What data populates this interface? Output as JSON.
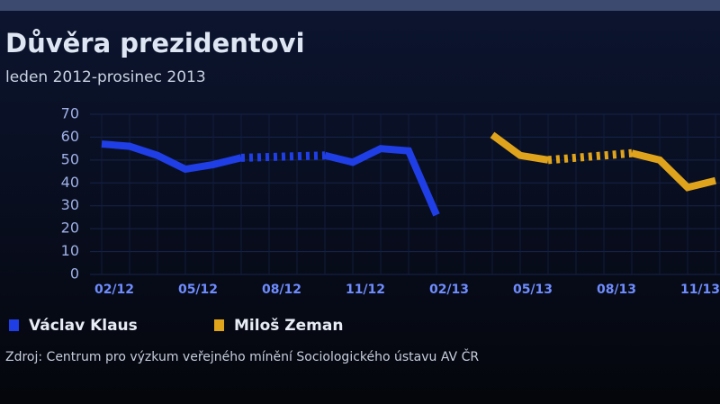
{
  "chart_data": {
    "type": "line",
    "title": "Důvěra prezidentovi",
    "subtitle": "leden 2012-prosinec 2013",
    "source": "Zdroj: Centrum pro výzkum veřejného mínění Sociologického ústavu AV ČR",
    "categories": [
      null,
      "02/12",
      null,
      null,
      "05/12",
      null,
      null,
      "08/12",
      null,
      null,
      "11/12",
      null,
      null,
      "02/13",
      null,
      null,
      "05/13",
      null,
      null,
      "08/13",
      null,
      null,
      "11/13",
      null
    ],
    "series": [
      {
        "name": "Václav Klaus",
        "color": "#1f3ee6",
        "values": [
          57,
          56,
          52,
          46,
          48,
          51,
          null,
          null,
          52,
          49,
          55,
          54,
          26,
          null,
          null,
          null,
          null,
          null,
          null,
          null,
          null,
          null,
          null,
          null
        ]
      },
      {
        "name": "Miloš Zeman",
        "color": "#e0a41c",
        "values": [
          null,
          null,
          null,
          null,
          null,
          null,
          null,
          null,
          null,
          null,
          null,
          null,
          null,
          null,
          61,
          52,
          50,
          null,
          null,
          53,
          50,
          38,
          41,
          null
        ]
      }
    ],
    "ylim": [
      0,
      70
    ],
    "yticks": [
      0,
      10,
      20,
      30,
      40,
      50,
      60,
      70
    ],
    "grid": true
  }
}
